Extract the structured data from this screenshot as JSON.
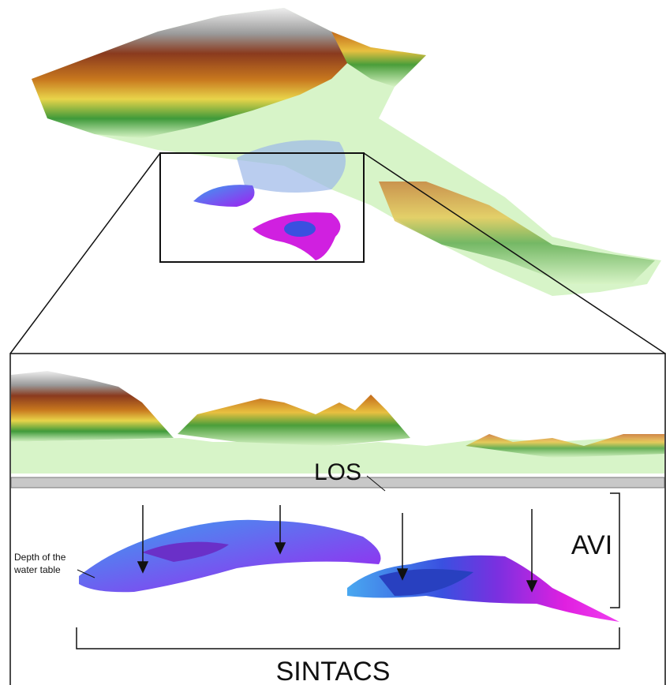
{
  "labels": {
    "los": "LOS",
    "avi": "AVI",
    "sintacs": "SINTACS",
    "depth": [
      "Depth of the",
      "water table"
    ]
  }
}
